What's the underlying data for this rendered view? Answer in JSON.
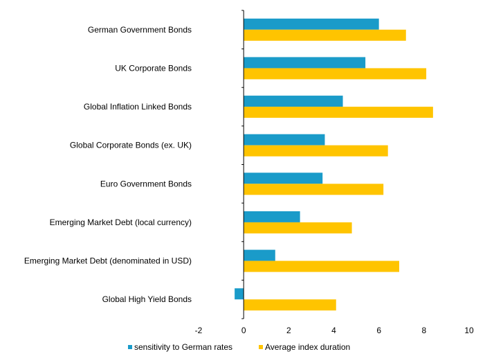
{
  "chart_data": {
    "type": "bar",
    "orientation": "horizontal",
    "title": "",
    "xlabel": "",
    "ylabel": "",
    "xlim": [
      -2,
      10
    ],
    "xticks": [
      "-2",
      "0",
      "2",
      "4",
      "6",
      "8",
      "10"
    ],
    "categories": [
      "German Government Bonds",
      "UK Corporate Bonds",
      "Global Inflation Linked Bonds",
      "Global Corporate Bonds (ex. UK)",
      "Euro Government Bonds",
      "Emerging Market Debt (local currency)",
      "Emerging Market Debt (denominated in USD)",
      "Global High Yield Bonds"
    ],
    "series": [
      {
        "name": "sensitivity to German rates",
        "color": "#1a9bc9",
        "values": [
          6.0,
          5.4,
          4.4,
          3.6,
          3.5,
          2.5,
          1.4,
          -0.4
        ]
      },
      {
        "name": "Average index duration",
        "color": "#ffc400",
        "values": [
          7.2,
          8.1,
          8.4,
          6.4,
          6.2,
          4.8,
          6.9,
          4.1
        ]
      }
    ],
    "legend_position": "bottom",
    "grid": false
  }
}
